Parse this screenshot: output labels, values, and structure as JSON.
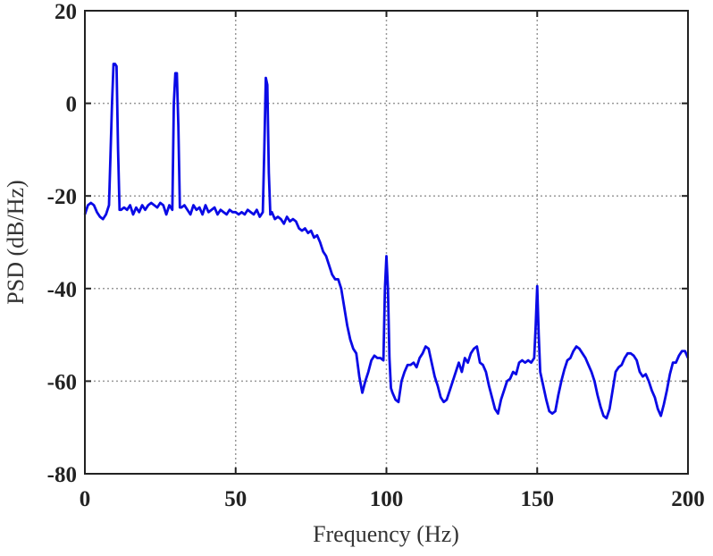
{
  "chart_data": {
    "type": "line",
    "xlabel": "Frequency (Hz)",
    "ylabel": "PSD (dB/Hz)",
    "xlim": [
      0,
      200
    ],
    "xticks": [
      0,
      50,
      100,
      150,
      200
    ],
    "ylim": [
      -80,
      20
    ],
    "yticks": [
      -80,
      -60,
      -40,
      -20,
      0,
      20
    ],
    "grid": true,
    "x": [
      0,
      1,
      2,
      3,
      4,
      5,
      6,
      7,
      8,
      9,
      9.5,
      10,
      10.5,
      11,
      11.5,
      12,
      13,
      14,
      15,
      16,
      17,
      18,
      19,
      20,
      21,
      22,
      23,
      24,
      25,
      26,
      27,
      28,
      29,
      29.5,
      30,
      30.5,
      31,
      31.5,
      32,
      33,
      34,
      35,
      36,
      37,
      38,
      39,
      40,
      41,
      42,
      43,
      44,
      45,
      46,
      47,
      48,
      49,
      50,
      51,
      52,
      53,
      54,
      55,
      56,
      57,
      58,
      59,
      59.5,
      60,
      60.5,
      61,
      61.5,
      62,
      63,
      64,
      65,
      66,
      67,
      68,
      69,
      70,
      71,
      72,
      73,
      74,
      75,
      76,
      77,
      78,
      79,
      80,
      81,
      82,
      83,
      84,
      85,
      86,
      87,
      88,
      89,
      90,
      91,
      92,
      93,
      94,
      95,
      96,
      97,
      98,
      99,
      99.5,
      100,
      100.5,
      101,
      101.5,
      102,
      103,
      104,
      105,
      106,
      107,
      108,
      109,
      110,
      111,
      112,
      113,
      114,
      115,
      116,
      117,
      118,
      119,
      120,
      121,
      122,
      123,
      124,
      125,
      126,
      127,
      128,
      129,
      130,
      131,
      132,
      133,
      134,
      135,
      136,
      137,
      138,
      139,
      140,
      141,
      142,
      143,
      144,
      145,
      146,
      147,
      148,
      149,
      149.5,
      150,
      150.5,
      151,
      152,
      153,
      154,
      155,
      156,
      157,
      158,
      159,
      160,
      161,
      162,
      163,
      164,
      165,
      166,
      167,
      168,
      169,
      170,
      171,
      172,
      173,
      174,
      175,
      176,
      177,
      178,
      179,
      180,
      181,
      182,
      183,
      184,
      185,
      186,
      187,
      188,
      189,
      190,
      191,
      192,
      193,
      194,
      195,
      196,
      197,
      198,
      199,
      200
    ],
    "series": [
      {
        "color": "#0a0ae6",
        "values": [
          -24,
          -22,
          -21.5,
          -22,
          -23.5,
          -24.5,
          -25,
          -24,
          -22,
          0,
          8.5,
          8.5,
          8,
          -10,
          -23,
          -23,
          -22.5,
          -23,
          -22,
          -24,
          -22.5,
          -23.5,
          -22,
          -23,
          -22,
          -21.5,
          -22,
          -22.5,
          -21.5,
          -22,
          -24,
          -22,
          -23,
          0,
          6.5,
          6.5,
          -5,
          -22.5,
          -22.5,
          -22,
          -23,
          -24,
          -22,
          -23,
          -22.5,
          -24,
          -22,
          -23.5,
          -23,
          -22.5,
          -24,
          -23,
          -23.5,
          -24,
          -23,
          -23.5,
          -23.5,
          -24,
          -23.5,
          -24,
          -23,
          -23.5,
          -24,
          -23,
          -24.5,
          -23.5,
          -10,
          5.5,
          4,
          -15,
          -24,
          -23.5,
          -25,
          -24.5,
          -25,
          -26,
          -24.5,
          -25.5,
          -25,
          -25.5,
          -27,
          -27.5,
          -27,
          -28,
          -27.5,
          -29,
          -28.5,
          -30,
          -32,
          -33,
          -35,
          -37,
          -38,
          -38,
          -40,
          -44,
          -48,
          -51,
          -53,
          -54,
          -59,
          -62.5,
          -60,
          -58,
          -55.5,
          -54.5,
          -55,
          -55,
          -55.5,
          -40,
          -33,
          -40,
          -55,
          -61.5,
          -62.5,
          -64,
          -64.5,
          -60,
          -58,
          -56.5,
          -56.5,
          -56,
          -57,
          -55,
          -54,
          -52.5,
          -53,
          -56,
          -59,
          -61,
          -63.5,
          -64.5,
          -64,
          -62,
          -60,
          -58,
          -56,
          -58,
          -55,
          -56,
          -54,
          -53,
          -52.5,
          -56,
          -56.5,
          -58,
          -61,
          -63.5,
          -66,
          -67,
          -64,
          -62,
          -60,
          -59.5,
          -58,
          -58.5,
          -56,
          -55.5,
          -56,
          -55.5,
          -56,
          -55,
          -48,
          -39.5,
          -50,
          -58,
          -61,
          -64,
          -66.5,
          -67,
          -66.5,
          -63,
          -60,
          -57.5,
          -55.5,
          -55,
          -53.5,
          -52.5,
          -53,
          -54,
          -55,
          -56.5,
          -58,
          -60,
          -63,
          -65.5,
          -67.5,
          -68,
          -66,
          -62,
          -58,
          -57,
          -56.5,
          -55,
          -54,
          -54,
          -54.5,
          -55.5,
          -58,
          -59,
          -58.5,
          -60,
          -62,
          -63.5,
          -66,
          -67.5,
          -65,
          -62,
          -58.5,
          -56,
          -56,
          -54.5,
          -53.5,
          -53.5,
          -55
        ]
      }
    ]
  }
}
